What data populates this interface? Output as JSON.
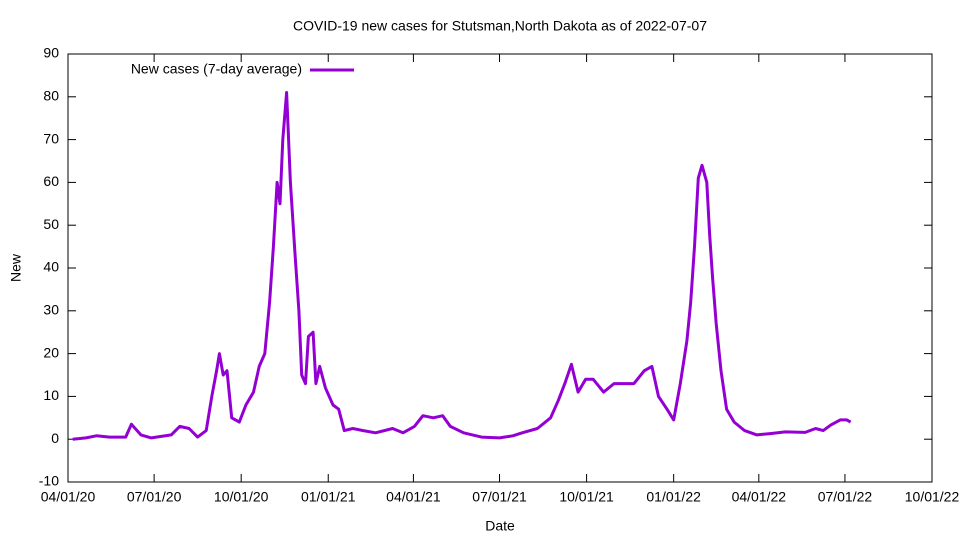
{
  "chart_data": {
    "type": "line",
    "title": "COVID-19 new cases for Stutsman,North Dakota as of 2022-07-07",
    "x_label": "Date",
    "y_label": "New",
    "x": [
      "04/06/20",
      "04/20/20",
      "05/01/20",
      "05/15/20",
      "06/01/20",
      "06/07/20",
      "06/17/20",
      "06/28/20",
      "07/19/20",
      "07/28/20",
      "08/07/20",
      "08/16/20",
      "08/25/20",
      "08/31/20",
      "09/05/20",
      "09/08/20",
      "09/12/20",
      "09/16/20",
      "09/21/20",
      "09/29/20",
      "10/06/20",
      "10/14/20",
      "10/20/20",
      "10/26/20",
      "10/31/20",
      "11/04/20",
      "11/08/20",
      "11/11/20",
      "11/14/20",
      "11/18/20",
      "11/22/20",
      "11/27/20",
      "12/01/20",
      "12/04/20",
      "12/08/20",
      "12/11/20",
      "12/16/20",
      "12/19/20",
      "12/23/20",
      "12/29/20",
      "01/06/21",
      "01/12/21",
      "01/18/21",
      "01/27/21",
      "02/07/21",
      "02/20/21",
      "03/10/21",
      "03/21/21",
      "04/02/21",
      "04/11/21",
      "04/22/21",
      "05/02/21",
      "05/10/21",
      "05/24/21",
      "06/12/21",
      "07/01/21",
      "07/15/21",
      "07/25/21",
      "08/10/21",
      "08/24/21",
      "09/01/21",
      "09/08/21",
      "09/15/21",
      "09/22/21",
      "09/30/21",
      "10/08/21",
      "10/19/21",
      "10/30/21",
      "11/09/21",
      "11/20/21",
      "12/01/21",
      "12/09/21",
      "12/16/21",
      "12/25/21",
      "01/01/22",
      "01/08/22",
      "01/15/22",
      "01/19/22",
      "01/23/22",
      "01/27/22",
      "01/31/22",
      "02/05/22",
      "02/08/22",
      "02/11/22",
      "02/15/22",
      "02/20/22",
      "02/26/22",
      "03/06/22",
      "03/17/22",
      "03/30/22",
      "04/13/22",
      "04/29/22",
      "05/20/22",
      "05/31/22",
      "06/08/22",
      "06/16/22",
      "06/26/22",
      "07/03/22",
      "07/07/22"
    ],
    "series": [
      {
        "name": "New cases (7-day average)",
        "color": "#9400d3",
        "values": [
          0,
          0.3,
          0.8,
          0.5,
          0.5,
          3.5,
          1.0,
          0.3,
          1.0,
          3.0,
          2.5,
          0.5,
          2,
          10,
          16,
          20,
          15,
          16,
          5,
          4,
          8,
          11,
          17,
          20,
          32,
          45,
          60,
          55,
          70,
          81,
          60,
          43,
          30,
          15,
          13,
          24,
          25,
          13,
          17,
          12,
          8,
          7,
          2,
          2.5,
          2,
          1.5,
          2.5,
          1.5,
          3,
          5.5,
          5,
          5.5,
          3,
          1.5,
          0.5,
          0.3,
          0.8,
          1.5,
          2.5,
          5,
          9,
          13,
          17.5,
          11,
          14,
          14,
          11,
          13,
          13,
          13,
          16,
          17,
          10,
          7,
          4.5,
          13,
          23,
          32,
          45,
          61,
          64,
          60,
          48,
          38,
          27,
          16,
          7,
          4,
          2,
          1,
          1.3,
          1.7,
          1.6,
          2.5,
          2,
          3.3,
          4.5,
          4.5,
          4
        ]
      }
    ],
    "xlim": [
      "04/01/20",
      "10/01/22"
    ],
    "xticks": [
      "04/01/20",
      "07/01/20",
      "10/01/20",
      "01/01/21",
      "04/01/21",
      "07/01/21",
      "10/01/21",
      "01/01/22",
      "04/01/22",
      "07/01/22",
      "10/01/22"
    ],
    "ylim": [
      -10,
      90
    ],
    "yticks": [
      -10,
      0,
      10,
      20,
      30,
      40,
      50,
      60,
      70,
      80,
      90
    ],
    "legend": "top-left",
    "grid": false
  }
}
